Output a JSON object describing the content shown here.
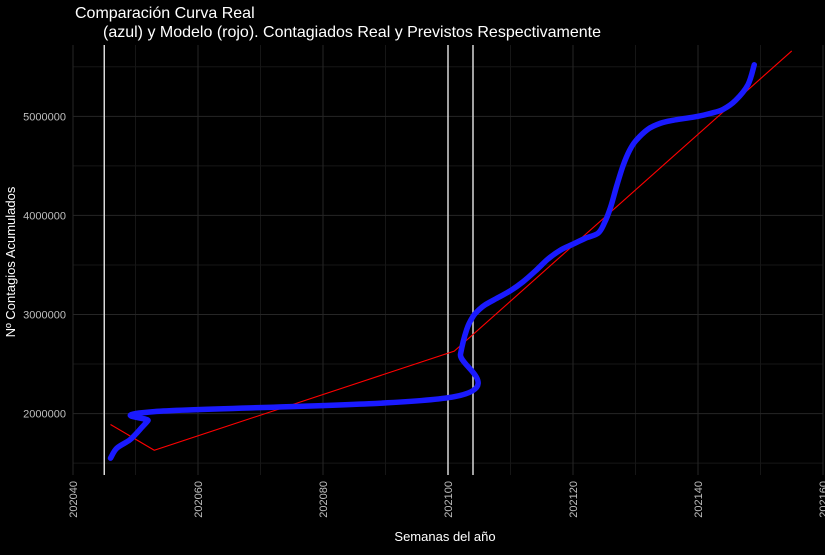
{
  "chart_data": {
    "type": "line",
    "title_line1": "Comparación Curva Real",
    "title_line2": "(azul) y Modelo (rojo). Contagiados Real y Previstos Respectivamente",
    "xlabel": "Semanas del año",
    "ylabel": "Nº Contagios Acumulados",
    "xlim": [
      202040,
      202160
    ],
    "ylim": [
      1380000,
      5720000
    ],
    "x_ticks": [
      202040,
      202060,
      202080,
      202100,
      202120,
      202140,
      202160
    ],
    "x_tick_labels": [
      "202040",
      "202060",
      "202080",
      "202100",
      "202120",
      "202140",
      "202160"
    ],
    "y_ticks": [
      2000000,
      3000000,
      4000000,
      5000000
    ],
    "y_tick_labels": [
      "2000000",
      "3000000",
      "4000000",
      "5000000"
    ],
    "grid": true,
    "vlines": [
      202045,
      202100,
      202104
    ],
    "colors": {
      "background": "#000000",
      "grid_major": "#262626",
      "grid_minor": "#161616",
      "real": "#1a1aff",
      "model": "#ff0000",
      "vline": "#e6e6e6",
      "text": "#ffffff",
      "tick_text": "#bfbfbf"
    },
    "series": [
      {
        "key": "real",
        "x": [
          202046,
          202047,
          202049,
          202050,
          202051,
          202052,
          202053,
          202101,
          202102,
          202103,
          202104,
          202105,
          202106,
          202108,
          202110,
          202112,
          202114,
          202116,
          202118,
          202120,
          202122,
          202124,
          202125,
          202126,
          202127,
          202128,
          202129,
          202130,
          202132,
          202134,
          202136,
          202138,
          202140,
          202142,
          202144,
          202146,
          202148,
          202149
        ],
        "values": [
          1550000,
          1650000,
          1730000,
          1790000,
          1860000,
          1930000,
          2020000,
          2170000,
          2600000,
          2850000,
          2980000,
          3050000,
          3100000,
          3170000,
          3240000,
          3330000,
          3440000,
          3560000,
          3650000,
          3710000,
          3770000,
          3820000,
          3920000,
          4080000,
          4300000,
          4500000,
          4650000,
          4750000,
          4870000,
          4930000,
          4960000,
          4980000,
          5000000,
          5030000,
          5070000,
          5160000,
          5320000,
          5520000
        ]
      },
      {
        "key": "model",
        "x": [
          202046,
          202053,
          202101,
          202155
        ],
        "values": [
          1890000,
          1630000,
          2630000,
          5660000
        ]
      }
    ]
  }
}
